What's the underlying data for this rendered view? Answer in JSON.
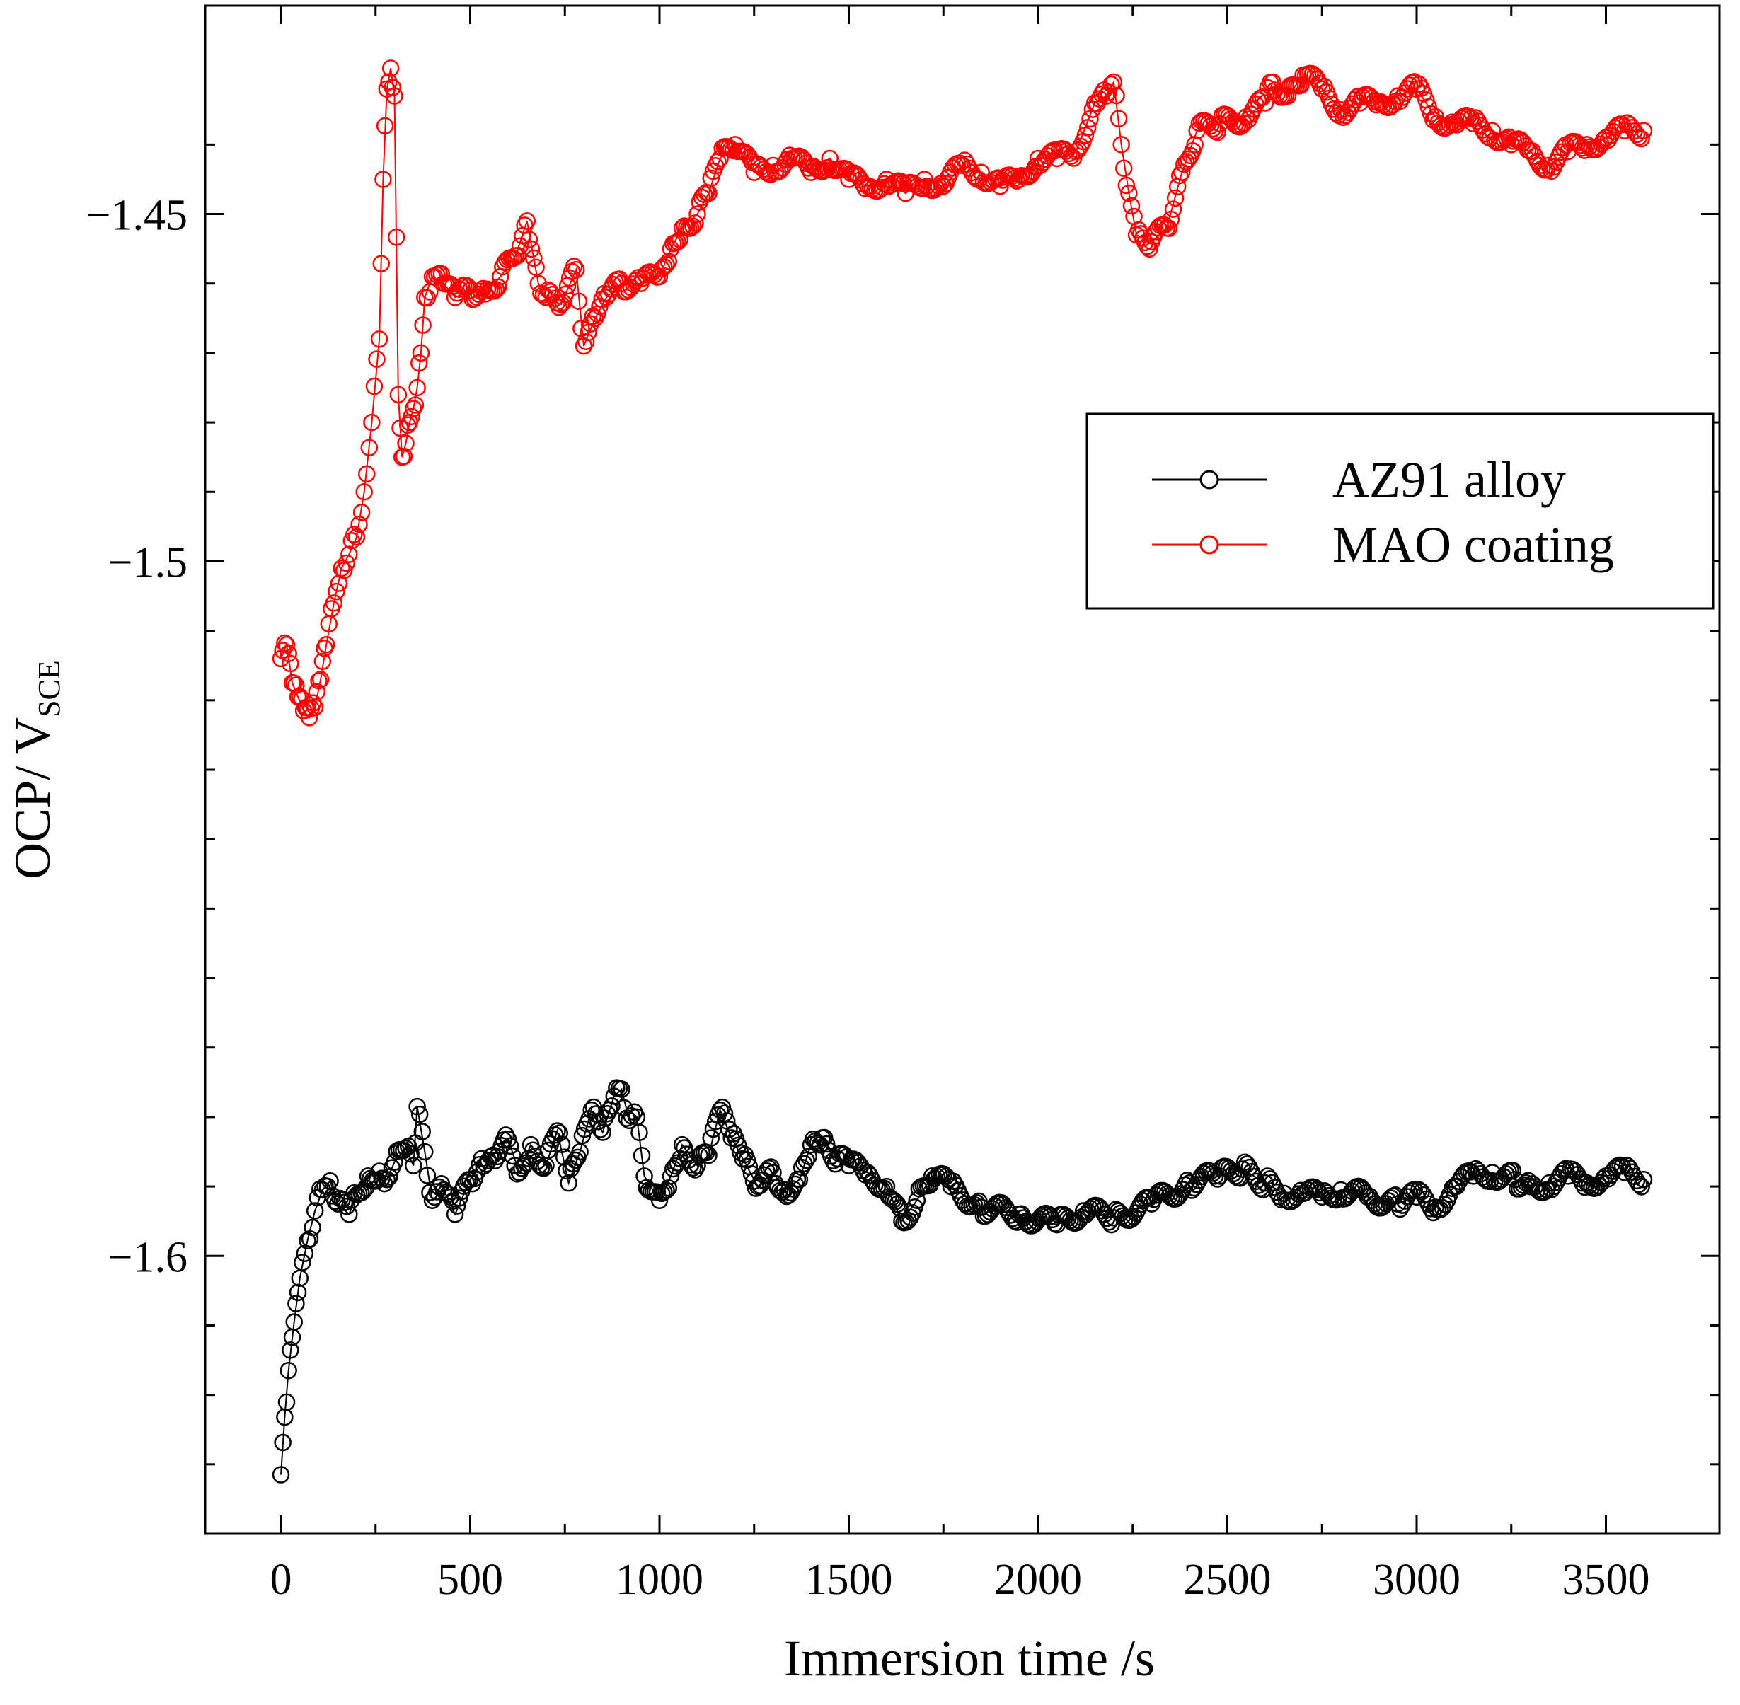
{
  "chart_data": {
    "type": "line",
    "title": "",
    "xlabel": "Immersion time /s",
    "ylabel_main": "OCP/ V",
    "ylabel_sub": "SCE",
    "xlim": [
      -200,
      3800
    ],
    "ylim": [
      -1.64,
      -1.42
    ],
    "x_ticks": [
      0,
      500,
      1000,
      1500,
      2000,
      2500,
      3000,
      3500
    ],
    "x_tick_labels": [
      "0",
      "500",
      "1000",
      "1500",
      "2000",
      "2500",
      "3000",
      "3500"
    ],
    "y_major_ticks": [
      -1.45,
      -1.5,
      -1.6
    ],
    "y_tick_labels": [
      "−1.45",
      "−1.5",
      "−1.6"
    ],
    "y_minor_ticks": [
      -1.44,
      -1.46,
      -1.47,
      -1.48,
      -1.49,
      -1.51,
      -1.52,
      -1.53,
      -1.54,
      -1.55,
      -1.56,
      -1.57,
      -1.58,
      -1.59,
      -1.61,
      -1.62,
      -1.63
    ],
    "grid": false,
    "legend_position": "top-right",
    "series": [
      {
        "name": "AZ91 alloy",
        "color": "#000000",
        "marker": "open-circle",
        "x": [
          0,
          10,
          20,
          35,
          50,
          70,
          90,
          110,
          130,
          150,
          180,
          200,
          230,
          260,
          280,
          300,
          330,
          350,
          360,
          380,
          400,
          430,
          460,
          500,
          530,
          560,
          600,
          630,
          660,
          700,
          730,
          760,
          790,
          820,
          850,
          880,
          900,
          920,
          940,
          960,
          1000,
          1030,
          1060,
          1100,
          1130,
          1160,
          1190,
          1220,
          1260,
          1300,
          1330,
          1370,
          1400,
          1430,
          1470,
          1500,
          1550,
          1600,
          1640,
          1680,
          1720,
          1770,
          1850,
          1950,
          2050,
          2120,
          2200,
          2300,
          2400,
          2480,
          2540,
          2600,
          2650,
          2700,
          2750,
          2800,
          2870,
          2950,
          3000,
          3050,
          3100,
          3150,
          3200,
          3260,
          3300,
          3350,
          3400,
          3450,
          3500,
          3550,
          3600
        ],
        "y": [
          -1.6315,
          -1.6232,
          -1.6165,
          -1.6095,
          -1.6032,
          -1.5978,
          -1.5935,
          -1.5905,
          -1.5892,
          -1.5925,
          -1.594,
          -1.5912,
          -1.5885,
          -1.5878,
          -1.589,
          -1.5865,
          -1.5845,
          -1.587,
          -1.5785,
          -1.585,
          -1.592,
          -1.5905,
          -1.594,
          -1.589,
          -1.586,
          -1.5855,
          -1.5832,
          -1.588,
          -1.584,
          -1.587,
          -1.582,
          -1.5895,
          -1.585,
          -1.579,
          -1.5822,
          -1.577,
          -1.576,
          -1.5805,
          -1.58,
          -1.5885,
          -1.592,
          -1.5885,
          -1.584,
          -1.587,
          -1.5855,
          -1.579,
          -1.583,
          -1.586,
          -1.59,
          -1.588,
          -1.5905,
          -1.589,
          -1.584,
          -1.583,
          -1.586,
          -1.587,
          -1.588,
          -1.59,
          -1.595,
          -1.592,
          -1.5885,
          -1.59,
          -1.593,
          -1.594,
          -1.5955,
          -1.5935,
          -1.5945,
          -1.5925,
          -1.5895,
          -1.5885,
          -1.5875,
          -1.5895,
          -1.591,
          -1.591,
          -1.5915,
          -1.5905,
          -1.5915,
          -1.5925,
          -1.5915,
          -1.593,
          -1.59,
          -1.5885,
          -1.588,
          -1.589,
          -1.59,
          -1.5895,
          -1.5885,
          -1.5895,
          -1.5885,
          -1.588,
          -1.589
        ]
      },
      {
        "name": "MAO coating",
        "color": "#ff0000",
        "marker": "open-circle",
        "x": [
          0,
          15,
          30,
          45,
          60,
          75,
          90,
          105,
          120,
          140,
          160,
          180,
          200,
          220,
          240,
          260,
          270,
          280,
          290,
          300,
          310,
          320,
          330,
          340,
          350,
          360,
          370,
          380,
          400,
          430,
          460,
          500,
          540,
          580,
          620,
          650,
          680,
          700,
          740,
          780,
          800,
          830,
          860,
          900,
          950,
          1000,
          1030,
          1060,
          1100,
          1130,
          1160,
          1200,
          1250,
          1300,
          1350,
          1400,
          1450,
          1500,
          1550,
          1600,
          1650,
          1700,
          1750,
          1800,
          1850,
          1900,
          1950,
          2000,
          2050,
          2100,
          2150,
          2180,
          2200,
          2220,
          2240,
          2260,
          2300,
          2340,
          2380,
          2420,
          2480,
          2550,
          2600,
          2620,
          2660,
          2700,
          2750,
          2800,
          2850,
          2900,
          2950,
          3000,
          3050,
          3100,
          3150,
          3200,
          3250,
          3300,
          3350,
          3400,
          3450,
          3500,
          3550,
          3600
        ],
        "y": [
          -1.514,
          -1.512,
          -1.5175,
          -1.5195,
          -1.5215,
          -1.5225,
          -1.521,
          -1.517,
          -1.512,
          -1.506,
          -1.501,
          -1.499,
          -1.4965,
          -1.49,
          -1.48,
          -1.468,
          -1.445,
          -1.432,
          -1.429,
          -1.433,
          -1.476,
          -1.485,
          -1.483,
          -1.48,
          -1.478,
          -1.475,
          -1.47,
          -1.462,
          -1.459,
          -1.46,
          -1.462,
          -1.461,
          -1.4615,
          -1.459,
          -1.456,
          -1.451,
          -1.46,
          -1.462,
          -1.463,
          -1.458,
          -1.469,
          -1.465,
          -1.462,
          -1.46,
          -1.46,
          -1.459,
          -1.455,
          -1.452,
          -1.45,
          -1.447,
          -1.442,
          -1.44,
          -1.444,
          -1.443,
          -1.442,
          -1.444,
          -1.442,
          -1.445,
          -1.446,
          -1.445,
          -1.447,
          -1.445,
          -1.446,
          -1.443,
          -1.444,
          -1.446,
          -1.445,
          -1.442,
          -1.442,
          -1.441,
          -1.434,
          -1.433,
          -1.431,
          -1.44,
          -1.447,
          -1.453,
          -1.454,
          -1.452,
          -1.444,
          -1.438,
          -1.437,
          -1.436,
          -1.434,
          -1.431,
          -1.433,
          -1.43,
          -1.432,
          -1.435,
          -1.434,
          -1.434,
          -1.433,
          -1.432,
          -1.436,
          -1.437,
          -1.437,
          -1.438,
          -1.44,
          -1.441,
          -1.443,
          -1.441,
          -1.44,
          -1.439,
          -1.438,
          -1.438
        ]
      }
    ]
  }
}
